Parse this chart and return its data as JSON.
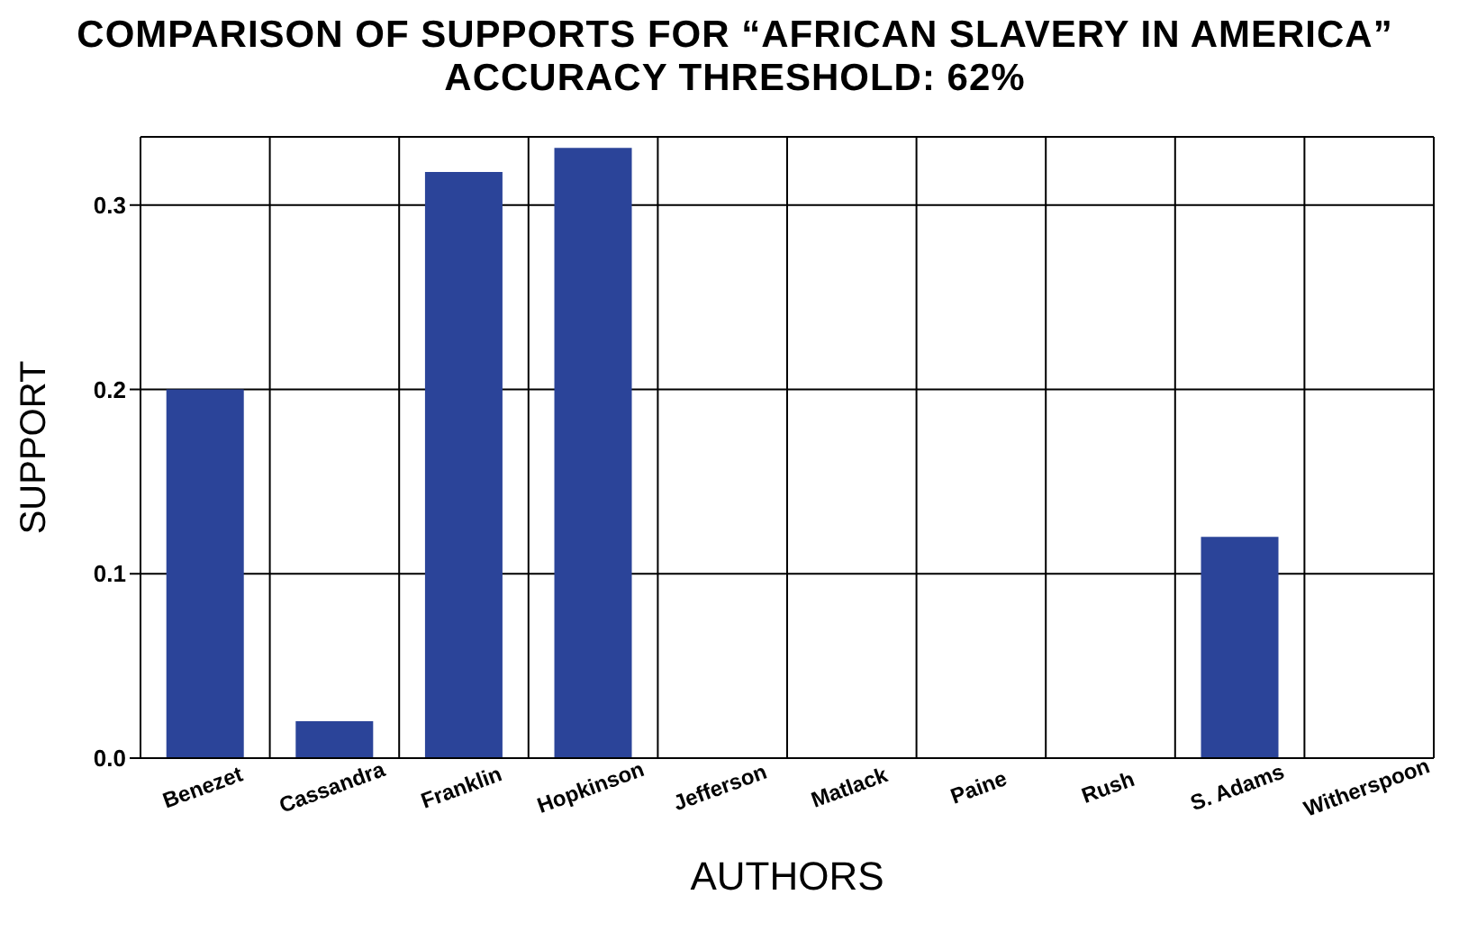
{
  "chart_data": {
    "type": "bar",
    "title": "COMPARISON OF SUPPORTS FOR “AFRICAN SLAVERY IN AMERICA”",
    "subtitle": "ACCURACY THRESHOLD: 62%",
    "xlabel": "AUTHORS",
    "ylabel": "SUPPORT",
    "categories": [
      "Benezet",
      "Cassandra",
      "Franklin",
      "Hopkinson",
      "Jefferson",
      "Matlack",
      "Paine",
      "Rush",
      "S. Adams",
      "Witherspoon"
    ],
    "values": [
      0.2,
      0.02,
      0.318,
      0.331,
      0,
      0,
      0,
      0,
      0.12,
      0
    ],
    "color": "#2b4499",
    "ylim": [
      0,
      0.337
    ],
    "yticks": [
      {
        "value": 0,
        "label": "0.0"
      },
      0.1,
      0.2,
      0.3
    ],
    "grid": true
  }
}
